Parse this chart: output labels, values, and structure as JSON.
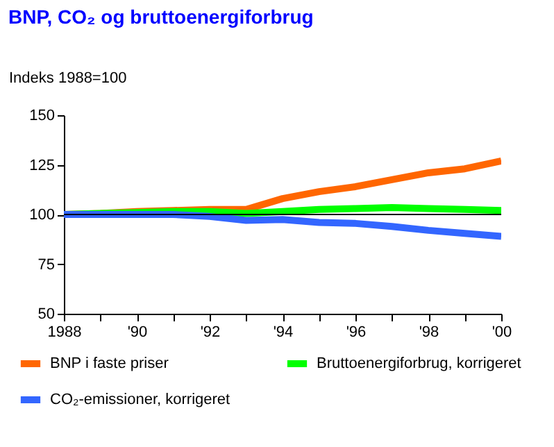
{
  "chart_data": {
    "type": "line",
    "title": "BNP, CO₂ og bruttoenergiforbrug",
    "ylabel": "Indeks 1988=100",
    "x": [
      1988,
      1989,
      1990,
      1991,
      1992,
      1993,
      1994,
      1995,
      1996,
      1997,
      1998,
      1999,
      2000
    ],
    "series": [
      {
        "name": "BNP i faste priser",
        "color": "#ff6600",
        "values": [
          100,
          100.5,
          101.5,
          102,
          102.5,
          102.5,
          108,
          111.5,
          114,
          117.5,
          121,
          123,
          127
        ]
      },
      {
        "name": "Bruttoenergiforbrug, korrigeret",
        "color": "#00ff00",
        "values": [
          100,
          100.5,
          101,
          101.5,
          101.5,
          100.5,
          101.5,
          102.5,
          103,
          103.5,
          103,
          102.5,
          102
        ]
      },
      {
        "name": "CO₂-emissioner, korrigeret",
        "color": "#3366ff",
        "values": [
          100,
          100,
          100,
          100,
          99,
          97,
          97.5,
          96,
          95.5,
          94,
          92,
          90.5,
          89
        ]
      }
    ],
    "xlim": [
      1988,
      2000
    ],
    "xticks": [
      {
        "value": 1988,
        "label": "1988"
      },
      {
        "value": 1989,
        "label": null
      },
      {
        "value": 1990,
        "label": "'90"
      },
      {
        "value": 1991,
        "label": null
      },
      {
        "value": 1992,
        "label": "'92"
      },
      {
        "value": 1993,
        "label": null
      },
      {
        "value": 1994,
        "label": "'94"
      },
      {
        "value": 1995,
        "label": null
      },
      {
        "value": 1996,
        "label": "'96"
      },
      {
        "value": 1997,
        "label": null
      },
      {
        "value": 1998,
        "label": "'98"
      },
      {
        "value": 1999,
        "label": null
      },
      {
        "value": 2000,
        "label": "'00"
      }
    ],
    "ylim": [
      50,
      150
    ],
    "yticks": [
      50,
      75,
      100,
      125,
      150
    ],
    "ref_lines": [
      {
        "axis": "y",
        "value": 100,
        "color": "#000000"
      }
    ],
    "grid": false,
    "legend": "bottom",
    "marker": "none",
    "line_style": "solid"
  }
}
